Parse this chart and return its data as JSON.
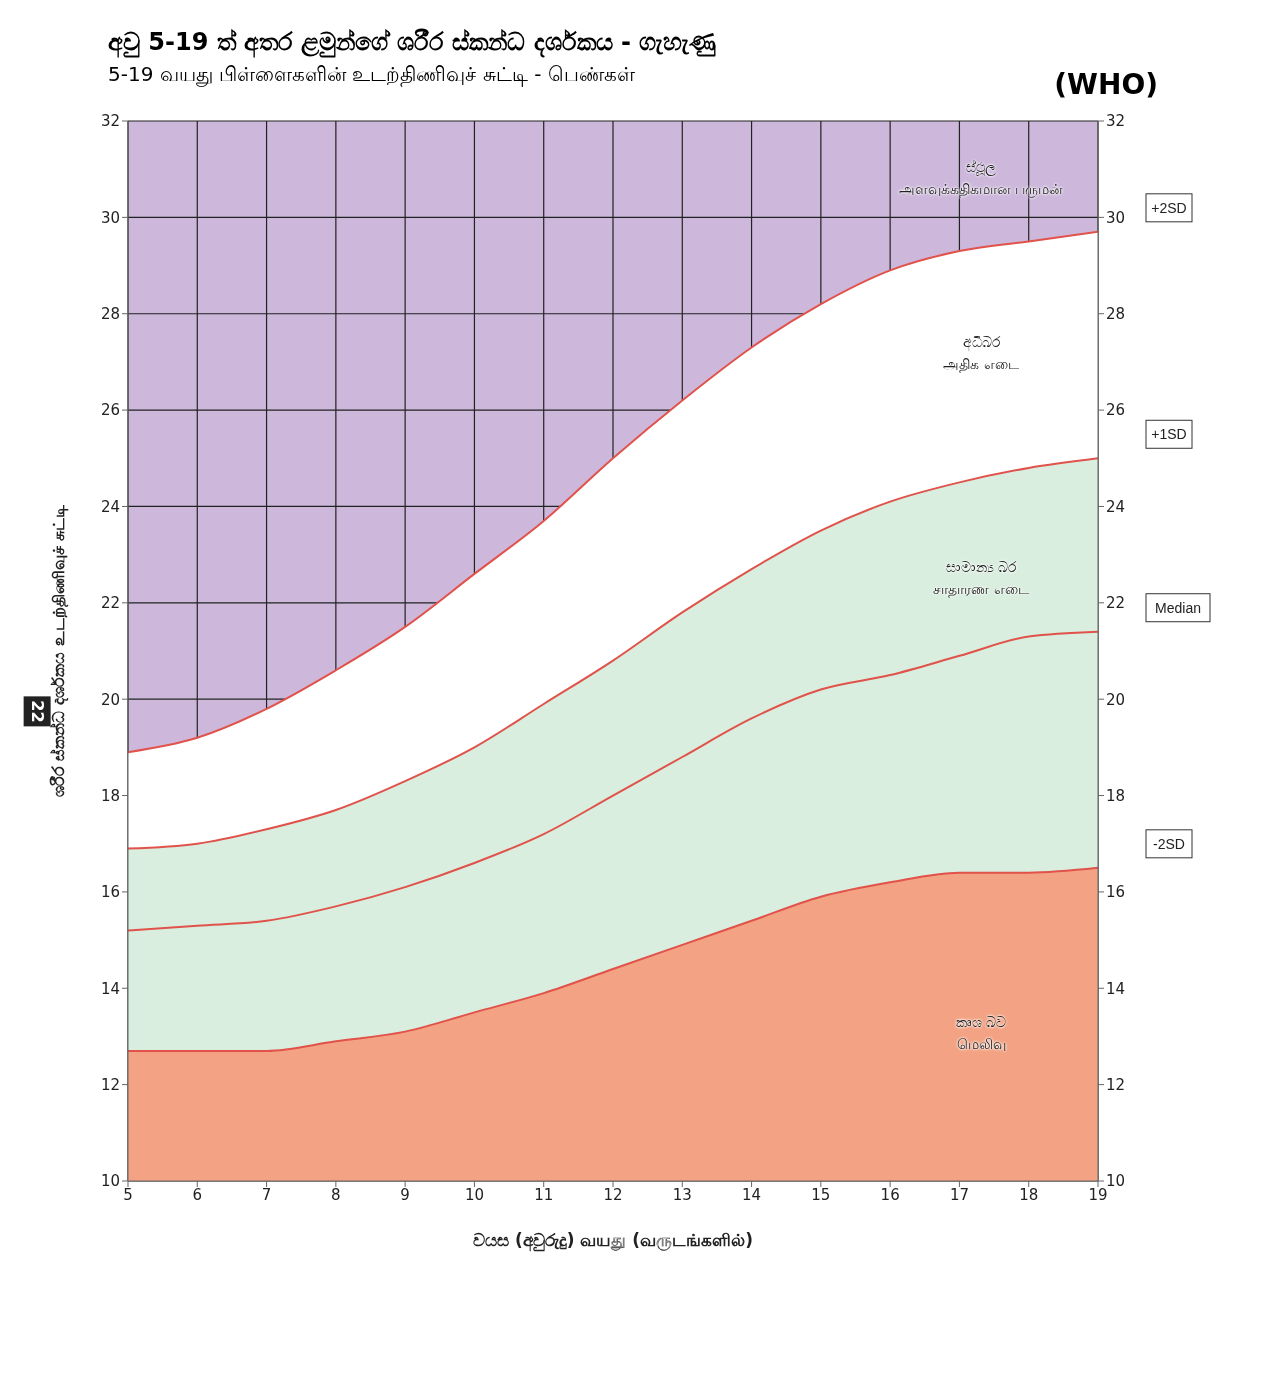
{
  "chart_data": {
    "type": "line",
    "title": "අවු 5-19 ත් අතර ළමුන්ගේ ශරීර ස්කන්ධ දර්ශකය - ගැහැණු",
    "subtitle": "5-19 வயது பிள்ளைகளின் உடற்திணிவுச் சுட்டி - பெண்கள்",
    "xlabel": "වයස (අවුරුදු) வயது (வருடங்களில்)",
    "ylabel": "ශරීර ස්කන්ධ දර්ශකය  உடற்திணிவுச் சுட்டி",
    "x": [
      5,
      6,
      7,
      8,
      9,
      10,
      11,
      12,
      13,
      14,
      15,
      16,
      17,
      18,
      19
    ],
    "series": [
      {
        "name": "+2SD",
        "type": "area",
        "color": "#ffffff",
        "values": [
          18.9,
          19.2,
          19.8,
          20.6,
          21.5,
          22.6,
          23.7,
          25.0,
          26.2,
          27.3,
          28.2,
          28.9,
          29.3,
          29.5,
          29.7
        ]
      },
      {
        "name": "+1SD",
        "type": "area",
        "color": "#d9eedf",
        "values": [
          16.9,
          17.0,
          17.3,
          17.7,
          18.3,
          19.0,
          19.9,
          20.8,
          21.8,
          22.7,
          23.5,
          24.1,
          24.5,
          24.8,
          25.0
        ]
      },
      {
        "name": "Median",
        "type": "line",
        "color": "#e0524a",
        "values": [
          15.2,
          15.3,
          15.4,
          15.7,
          16.1,
          16.6,
          17.2,
          18.0,
          18.8,
          19.6,
          20.2,
          20.5,
          20.9,
          21.3,
          21.4
        ]
      },
      {
        "name": "-2SD",
        "type": "area",
        "color": "#f3a283",
        "values": [
          12.7,
          12.7,
          12.7,
          12.9,
          13.1,
          13.5,
          13.9,
          14.4,
          14.9,
          15.4,
          15.9,
          16.2,
          16.4,
          16.4,
          16.5
        ]
      }
    ],
    "xlim": [
      5,
      19
    ],
    "xticks": [
      5,
      6,
      7,
      8,
      9,
      10,
      11,
      12,
      13,
      14,
      15,
      16,
      17,
      18,
      19
    ],
    "ylim": [
      10,
      32
    ],
    "yticks": [
      10,
      12,
      14,
      16,
      18,
      20,
      22,
      24,
      26,
      28,
      30,
      32
    ],
    "y2lim": [
      10,
      32
    ],
    "y2ticks": [
      10,
      12,
      14,
      16,
      18,
      20,
      22,
      24,
      26,
      28,
      30,
      32
    ],
    "grid": true,
    "marker": "none",
    "line_style": "solid",
    "legend": false,
    "annotations": [
      "(WHO)",
      "22",
      "ස්ථූල\nஅளவுக்கதிகமான பருமன்",
      "අධිබර\nஅதிக எடை",
      "සාමාන්‍ය බර\nசாதாரண எடை",
      "කෘශ බව\nமெலிவு"
    ]
  }
}
